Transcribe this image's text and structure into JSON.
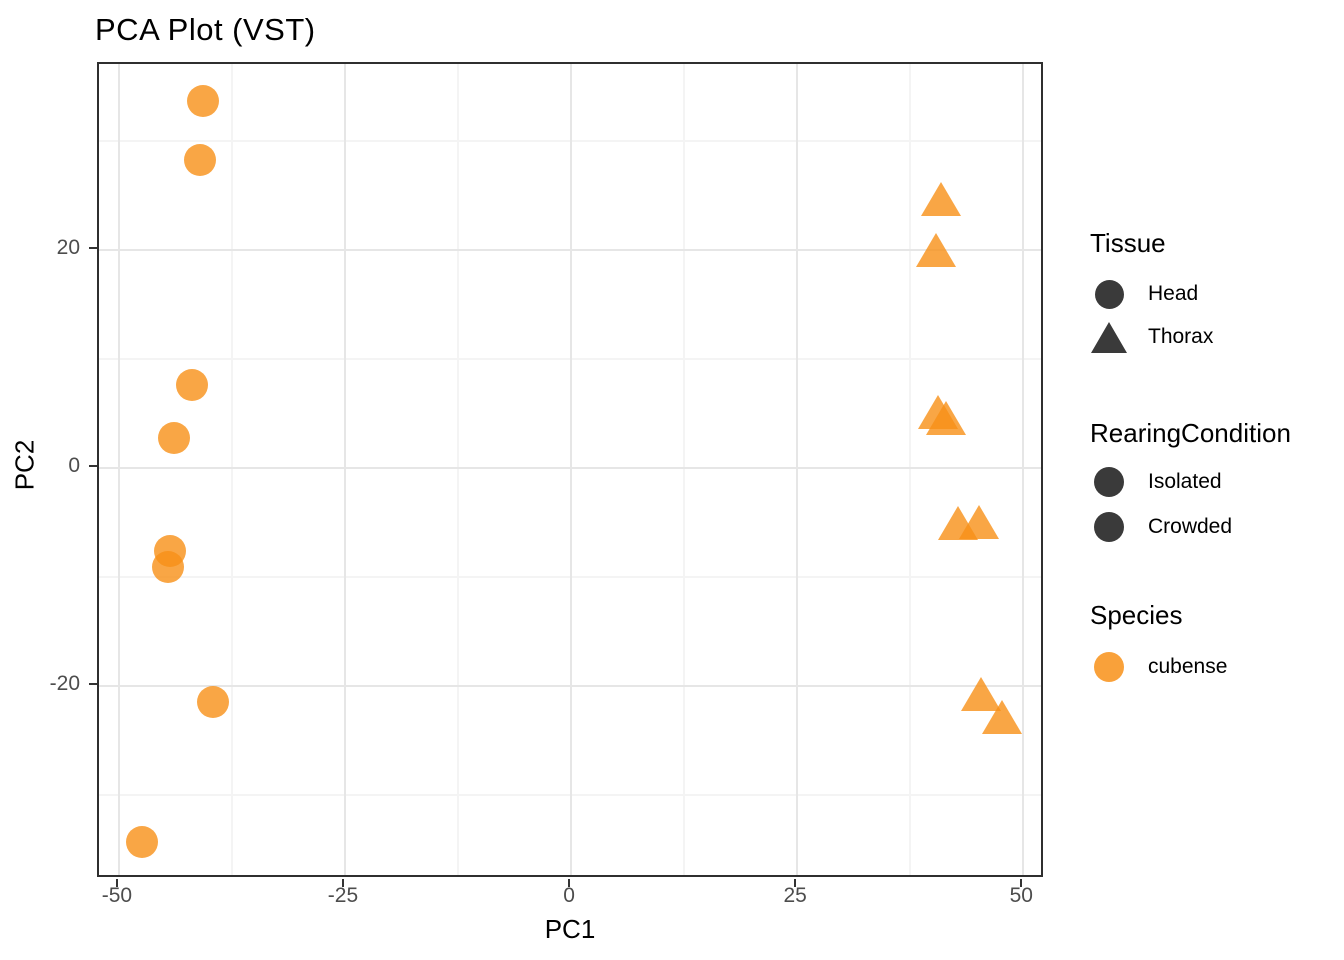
{
  "title": "PCA Plot (VST)",
  "chart_data": {
    "type": "scatter",
    "title": "PCA Plot (VST)",
    "xlabel": "PC1",
    "ylabel": "PC2",
    "xlim": [
      -52.2,
      52.4
    ],
    "ylim": [
      -37.7,
      37.1
    ],
    "grid": "major+minor",
    "legend_position": "right",
    "x_major_ticks": [
      {
        "value": -50,
        "label": "-50"
      },
      {
        "value": -25,
        "label": "-25"
      },
      {
        "value": 0,
        "label": "0"
      },
      {
        "value": 25,
        "label": "25"
      },
      {
        "value": 50,
        "label": "50"
      }
    ],
    "y_major_ticks": [
      {
        "value": 20,
        "label": "20"
      },
      {
        "value": 0,
        "label": "0"
      },
      {
        "value": -20,
        "label": "-20"
      }
    ],
    "x_minor_ticks": [
      -37.5,
      -12.5,
      12.5,
      37.5
    ],
    "y_minor_ticks": [
      -30,
      -10,
      10,
      30
    ],
    "series": [
      {
        "name": "Head",
        "marker": "circle",
        "species": "cubense",
        "color": "#F89017",
        "opacity": 0.8,
        "points": [
          [
            -40.7,
            33.7
          ],
          [
            -41.0,
            28.3
          ],
          [
            -41.9,
            7.6
          ],
          [
            -43.9,
            2.8
          ],
          [
            -44.4,
            -7.6
          ],
          [
            -44.6,
            -9.1
          ],
          [
            -39.6,
            -21.5
          ],
          [
            -47.5,
            -34.3
          ]
        ]
      },
      {
        "name": "Thorax",
        "marker": "triangle",
        "species": "cubense",
        "color": "#F89017",
        "opacity": 0.8,
        "points": [
          [
            40.9,
            24.7
          ],
          [
            40.3,
            20.0
          ],
          [
            40.6,
            5.2
          ],
          [
            41.4,
            4.6
          ],
          [
            42.8,
            -5.0
          ],
          [
            45.1,
            -4.9
          ],
          [
            45.3,
            -20.7
          ],
          [
            47.7,
            -22.8
          ]
        ]
      }
    ]
  },
  "legend": {
    "groups": [
      {
        "title": "Tissue",
        "items": [
          {
            "label": "Head",
            "marker": "circle",
            "color": "#3A3A3A",
            "size": 29
          },
          {
            "label": "Thorax",
            "marker": "triangle",
            "color": "#3A3A3A",
            "size": 31
          }
        ]
      },
      {
        "title": "RearingCondition",
        "items": [
          {
            "label": "Isolated",
            "marker": "circle",
            "color": "#3A3A3A",
            "size": 30
          },
          {
            "label": "Crowded",
            "marker": "circle",
            "color": "#3A3A3A",
            "size": 30
          }
        ]
      },
      {
        "title": "Species",
        "items": [
          {
            "label": "cubense",
            "marker": "circle",
            "color": "#F89017",
            "size": 30,
            "opacity": 0.85
          }
        ]
      }
    ]
  },
  "colors": {
    "point_fill": "#F89017",
    "legend_symbol_dark": "#3A3A3A",
    "grid_major": "#E6E6E6",
    "grid_minor": "#F4F4F4",
    "panel_border": "#2F2F2F",
    "tick_label": "#4D4D4D",
    "text": "#000000"
  }
}
